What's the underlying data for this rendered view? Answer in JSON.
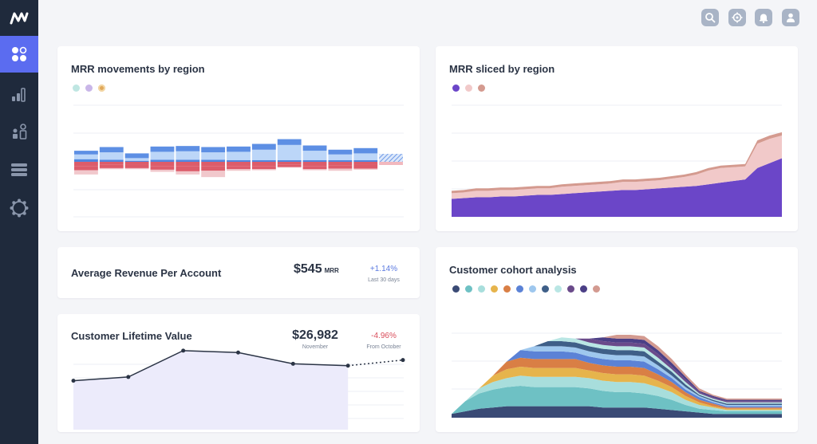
{
  "app": {
    "logo_icon": "chartmogul-logo-icon",
    "nav": [
      {
        "id": "dashboard",
        "icon": "dashboard-icon",
        "active": true
      },
      {
        "id": "reports",
        "icon": "bar-chart-icon",
        "active": false
      },
      {
        "id": "customers",
        "icon": "customers-icon",
        "active": false
      },
      {
        "id": "data",
        "icon": "list-icon",
        "active": false
      },
      {
        "id": "settings",
        "icon": "gear-icon",
        "active": false
      }
    ],
    "top_icons": [
      "search-icon",
      "target-icon",
      "bell-icon",
      "user-icon"
    ],
    "accent_color": "#5b6cf0",
    "sidebar_color": "#1f2a3c"
  },
  "cards": {
    "mrr_movements": {
      "title": "MRR movements by region",
      "legend_colors": [
        "#bfe6e2",
        "#c9b6e8",
        "#e0a85a"
      ]
    },
    "mrr_sliced": {
      "title": "MRR sliced by region",
      "legend_colors": [
        "#6b46c8",
        "#f1c9c9",
        "#d49a8f"
      ]
    },
    "arpa": {
      "title": "Average Revenue Per Account",
      "value": "$545",
      "unit": "MRR",
      "delta": "+1.14%",
      "delta_color": "#5b7ae0",
      "period": "Last 30 days"
    },
    "ltv": {
      "title": "Customer Lifetime Value",
      "value": "$26,982",
      "value_caption": "November",
      "delta": "-4.96%",
      "delta_color": "#d94c5a",
      "period": "From October"
    },
    "cohort": {
      "title": "Customer cohort analysis",
      "legend_colors": [
        "#3a4a75",
        "#6ec1c4",
        "#a8dedc",
        "#e6b44c",
        "#d97f45",
        "#5b82d6",
        "#9ec7ee",
        "#3f5f88",
        "#b9e6e4",
        "#6a4a8a",
        "#4b3f86",
        "#d39a90"
      ]
    }
  },
  "chart_data": [
    {
      "type": "bar",
      "chart_id": "mrr_movements",
      "categories": [
        1,
        2,
        3,
        4,
        5,
        6,
        7,
        8,
        9,
        10,
        11,
        12,
        13
      ],
      "series": [
        {
          "values": [
            5,
            4,
            2,
            4,
            4,
            4,
            3,
            3,
            3,
            3,
            3,
            3,
            0
          ],
          "color": "#4f86e0"
        },
        {
          "values": [
            9,
            14,
            5,
            15,
            16,
            14,
            16,
            20,
            29,
            18,
            11,
            13,
            0
          ],
          "color": "#bcd6f8"
        },
        {
          "values": [
            7,
            10,
            9,
            10,
            10,
            10,
            10,
            11,
            11,
            10,
            9,
            10,
            0
          ],
          "color": "#5d8fe4"
        },
        {
          "values": [
            -8,
            -5,
            -6,
            -8,
            -8,
            -8,
            -8,
            -8,
            -5,
            -8,
            -7,
            -6,
            0
          ],
          "color": "#dc5c6a"
        },
        {
          "values": [
            -8,
            -7,
            -6,
            -7,
            -10,
            -9,
            -6,
            -6,
            -5,
            -6,
            -6,
            -7,
            0
          ],
          "color": "#dc5c6a"
        },
        {
          "values": [
            -8,
            -2,
            -2,
            -4,
            -6,
            -12,
            -3,
            -2,
            -1,
            -2,
            -4,
            -2,
            0
          ],
          "color": "#f1c8cc"
        }
      ],
      "forecast_last": true,
      "grid": true
    },
    {
      "type": "area",
      "chart_id": "mrr_sliced",
      "x": [
        0,
        1,
        2,
        3,
        4,
        5,
        6,
        7,
        8,
        9,
        10,
        11,
        12,
        13,
        14,
        15,
        16,
        17,
        18,
        19,
        20,
        21,
        22,
        23,
        24,
        25,
        26,
        27
      ],
      "series": [
        {
          "values": [
            22,
            23,
            24,
            24,
            25,
            25,
            26,
            27,
            27,
            28,
            29,
            30,
            31,
            32,
            33,
            33,
            34,
            35,
            36,
            37,
            38,
            40,
            42,
            44,
            46,
            60,
            66,
            72
          ],
          "color": "#6b46c8"
        },
        {
          "values": [
            7,
            7,
            8,
            8,
            8,
            8,
            8,
            8,
            8,
            9,
            9,
            9,
            9,
            9,
            10,
            10,
            10,
            10,
            11,
            12,
            14,
            17,
            18,
            17,
            16,
            30,
            30,
            28
          ],
          "color": "#f1c9c9"
        },
        {
          "values": [
            3,
            3,
            3,
            3,
            3,
            3,
            3,
            3,
            3,
            3,
            3,
            3,
            3,
            3,
            3,
            3,
            3,
            3,
            3,
            3,
            3,
            3,
            3,
            3,
            3,
            4,
            4,
            4
          ],
          "color": "#d49a8f"
        }
      ],
      "grid": true
    },
    {
      "type": "line",
      "chart_id": "ltv",
      "x": [
        0,
        1,
        2,
        3,
        4,
        5,
        6
      ],
      "values": [
        26,
        28,
        42,
        41,
        35,
        34,
        37
      ],
      "forecast_last": true,
      "grid": true
    },
    {
      "type": "area",
      "chart_id": "cohort",
      "x": [
        0,
        1,
        2,
        3,
        4,
        5,
        6,
        7,
        8,
        9,
        10,
        11,
        12,
        13,
        14,
        15,
        16,
        17,
        18,
        19,
        20,
        21,
        22,
        23,
        24
      ],
      "series": [
        {
          "values": [
            3,
            5,
            7,
            8,
            9,
            9,
            9,
            9,
            9,
            9,
            9,
            8,
            8,
            8,
            8,
            7,
            6,
            5,
            4,
            3,
            3,
            3,
            3,
            3,
            3
          ],
          "color": "#3a4a75"
        },
        {
          "values": [
            0,
            8,
            12,
            14,
            15,
            16,
            15,
            15,
            15,
            15,
            14,
            13,
            12,
            12,
            11,
            10,
            8,
            5,
            3,
            3,
            2,
            2,
            2,
            2,
            2
          ],
          "color": "#6ec1c4"
        },
        {
          "values": [
            0,
            0,
            4,
            6,
            7,
            8,
            8,
            8,
            8,
            8,
            8,
            8,
            8,
            8,
            8,
            7,
            6,
            4,
            3,
            2,
            1,
            1,
            1,
            1,
            1
          ],
          "color": "#a8dedc"
        },
        {
          "values": [
            0,
            0,
            0,
            5,
            7,
            7,
            7,
            7,
            7,
            7,
            6,
            6,
            6,
            6,
            6,
            5,
            4,
            3,
            2,
            1,
            1,
            1,
            1,
            1,
            1
          ],
          "color": "#e6b44c"
        },
        {
          "values": [
            0,
            0,
            0,
            0,
            6,
            7,
            7,
            7,
            7,
            7,
            6,
            6,
            6,
            6,
            6,
            5,
            4,
            3,
            2,
            2,
            1,
            1,
            1,
            1,
            1
          ],
          "color": "#d97f45"
        },
        {
          "values": [
            0,
            0,
            0,
            0,
            0,
            6,
            6,
            6,
            6,
            5,
            5,
            5,
            5,
            5,
            5,
            4,
            3,
            2,
            2,
            1,
            1,
            1,
            1,
            1,
            1
          ],
          "color": "#5b82d6"
        },
        {
          "values": [
            0,
            0,
            0,
            0,
            0,
            0,
            4,
            4,
            4,
            4,
            4,
            4,
            4,
            4,
            4,
            3,
            2,
            2,
            1,
            1,
            1,
            1,
            1,
            1,
            1
          ],
          "color": "#9ec7ee"
        },
        {
          "values": [
            0,
            0,
            0,
            0,
            0,
            0,
            0,
            4,
            4,
            4,
            4,
            4,
            4,
            4,
            4,
            3,
            3,
            2,
            1,
            1,
            1,
            1,
            1,
            1,
            1
          ],
          "color": "#3f5f88"
        },
        {
          "values": [
            0,
            0,
            0,
            0,
            0,
            0,
            0,
            0,
            3,
            3,
            3,
            3,
            3,
            3,
            3,
            3,
            2,
            2,
            1,
            1,
            1,
            1,
            1,
            1,
            1
          ],
          "color": "#b9e6e4"
        },
        {
          "values": [
            0,
            0,
            0,
            0,
            0,
            0,
            0,
            0,
            0,
            0,
            3,
            3,
            3,
            3,
            3,
            3,
            2,
            2,
            1,
            1,
            1,
            1,
            1,
            1,
            1
          ],
          "color": "#6a4a8a"
        },
        {
          "values": [
            0,
            0,
            0,
            0,
            0,
            0,
            0,
            0,
            0,
            0,
            0,
            3,
            3,
            3,
            3,
            3,
            3,
            2,
            1,
            1,
            1,
            1,
            1,
            1,
            1
          ],
          "color": "#4b3f86"
        },
        {
          "values": [
            0,
            0,
            0,
            0,
            0,
            0,
            0,
            0,
            0,
            0,
            0,
            0,
            3,
            3,
            3,
            3,
            3,
            2,
            2,
            1,
            1,
            1,
            1,
            1,
            1
          ],
          "color": "#d39a90"
        }
      ],
      "grid": true
    }
  ]
}
